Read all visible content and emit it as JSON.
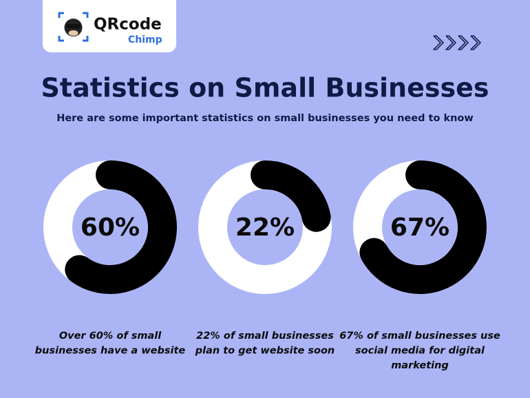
{
  "logo": {
    "name": "QRcode",
    "sub": "Chimp"
  },
  "title": "Statistics on Small Businesses",
  "subtitle": "Here are some important statistics on small businesses you need to know",
  "chart_data": [
    {
      "type": "donut",
      "values": [
        60
      ],
      "value_labels": [
        "60%"
      ],
      "color": "#000000",
      "track_color": "#ffffff",
      "caption": [
        "Over 60% of small",
        "businesses have a website"
      ]
    },
    {
      "type": "donut",
      "values": [
        22
      ],
      "value_labels": [
        "22%"
      ],
      "color": "#000000",
      "track_color": "#ffffff",
      "caption": [
        "22% of small businesses",
        "plan to get website soon"
      ]
    },
    {
      "type": "donut",
      "values": [
        67
      ],
      "value_labels": [
        "67%"
      ],
      "color": "#000000",
      "track_color": "#ffffff",
      "caption": [
        "67% of small businesses use",
        "social media for digital",
        "marketing"
      ]
    }
  ]
}
